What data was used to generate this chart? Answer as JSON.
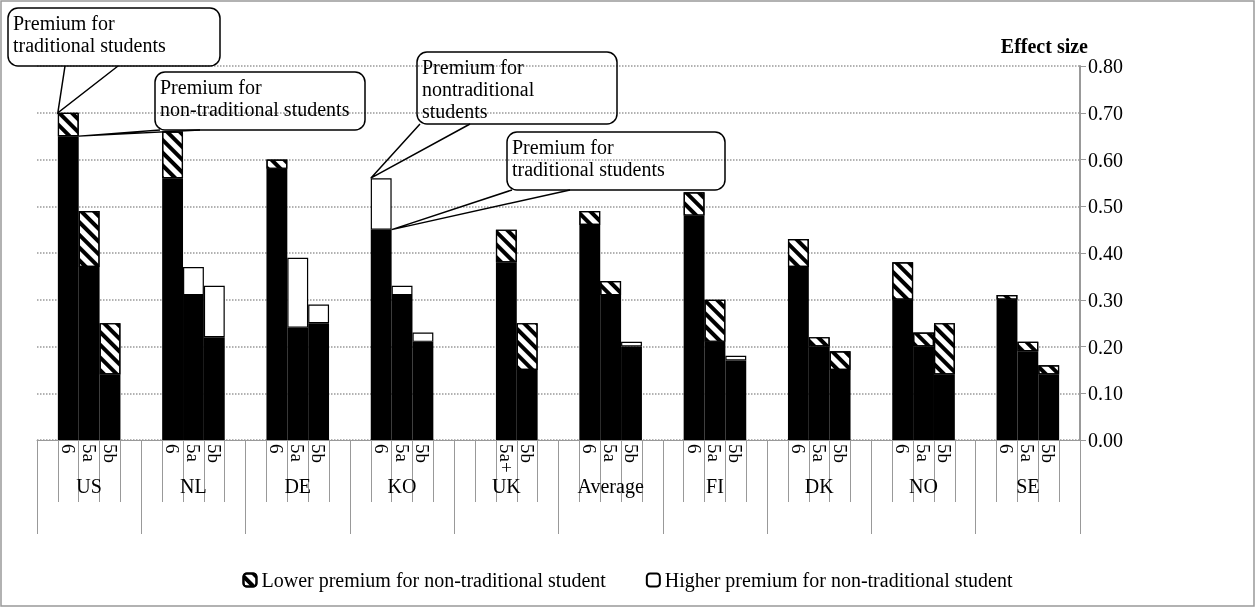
{
  "chart_data": {
    "type": "bar",
    "stacked": true,
    "categories": [
      null,
      "6",
      "5a",
      "5b",
      null,
      null,
      "6",
      "5a",
      "5b",
      null,
      null,
      "6",
      "5a",
      "5b",
      null,
      null,
      "6",
      "5a",
      "5b",
      null,
      null,
      null,
      "5a+",
      "5b",
      null,
      null,
      "6",
      "5a",
      "5b",
      null,
      null,
      "6",
      "5a",
      "5b",
      null,
      null,
      "6",
      "5a",
      "5b",
      null,
      null,
      "6",
      "5a",
      "5b",
      null,
      null,
      "6",
      "5a",
      "5b",
      null
    ],
    "series": [
      {
        "color": "#000000",
        "values": [
          null,
          0.65,
          0.37,
          0.14,
          null,
          null,
          0.56,
          0.31,
          0.22,
          null,
          null,
          0.58,
          0.24,
          0.25,
          null,
          null,
          0.45,
          0.31,
          0.21,
          null,
          null,
          null,
          0.38,
          0.15,
          null,
          null,
          0.46,
          0.31,
          0.2,
          null,
          null,
          0.48,
          0.21,
          0.17,
          null,
          null,
          0.37,
          0.2,
          0.15,
          null,
          null,
          0.3,
          0.2,
          0.14,
          null,
          null,
          0.3,
          0.19,
          0.14,
          null
        ]
      },
      {
        "name": "Lower premium for non-traditional student",
        "color": "#ffffff",
        "values": [
          null,
          0.05,
          0.12,
          0.11,
          null,
          null,
          0.1,
          null,
          null,
          null,
          null,
          0.02,
          null,
          null,
          null,
          null,
          null,
          null,
          null,
          null,
          null,
          null,
          0.07,
          0.1,
          null,
          null,
          0.03,
          0.03,
          null,
          null,
          null,
          0.05,
          0.09,
          null,
          null,
          null,
          0.06,
          0.02,
          0.04,
          null,
          null,
          0.08,
          0.03,
          0.11,
          null,
          null,
          0.01,
          0.02,
          0.02,
          null
        ]
      },
      {
        "name": "Higher premium for non-traditional student",
        "color": "#ffffff",
        "values": [
          null,
          null,
          null,
          null,
          null,
          null,
          null,
          0.06,
          0.11,
          null,
          null,
          null,
          0.15,
          0.04,
          null,
          null,
          0.11,
          0.02,
          0.02,
          null,
          null,
          null,
          null,
          null,
          null,
          null,
          null,
          null,
          0.01,
          null,
          null,
          null,
          null,
          0.01,
          null,
          null,
          null,
          null,
          null,
          null,
          null,
          null,
          null,
          null,
          null,
          null,
          null,
          null,
          null,
          null
        ]
      }
    ],
    "ylabel": "Effect size",
    "ylim": [
      0,
      0.8
    ],
    "yticks": [
      {
        "value": 0,
        "label": "0.00"
      },
      {
        "value": 0.1,
        "label": "0.10"
      },
      {
        "value": 0.2,
        "label": "0.20"
      },
      {
        "value": 0.3,
        "label": "0.30"
      },
      {
        "value": 0.4,
        "label": "0.40"
      },
      {
        "value": 0.5,
        "label": "0.50"
      },
      {
        "value": 0.6,
        "label": "0.60"
      },
      {
        "value": 0.7,
        "label": "0.70"
      },
      {
        "value": 0.8,
        "label": "0.80"
      }
    ],
    "grid": "y",
    "legend": "bottom",
    "annotations": [
      "Premium for traditional students",
      "Premium for non-traditional students",
      "Premium for nontraditional students",
      "Premium for traditional students",
      "US",
      "NL",
      "DE",
      "KO",
      "UK",
      "Average",
      "FI",
      "DK",
      "NO",
      "SE"
    ]
  }
}
